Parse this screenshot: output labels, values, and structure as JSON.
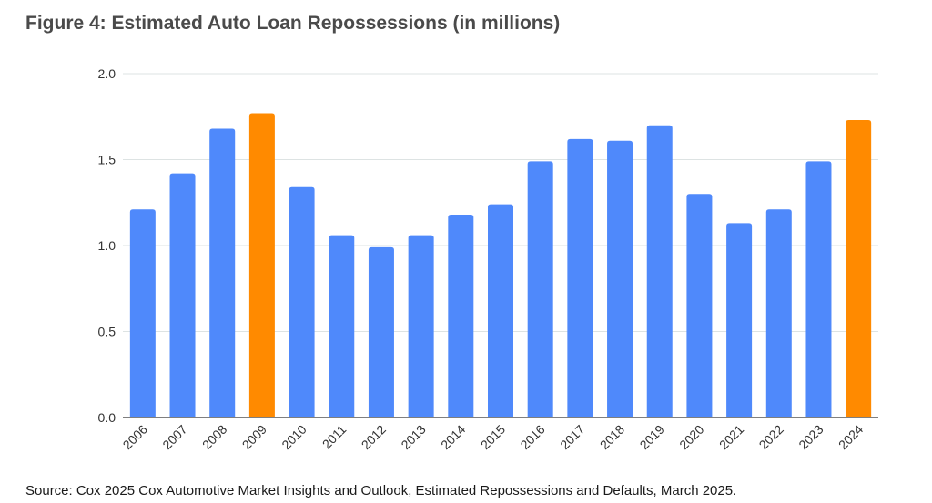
{
  "chart_data": {
    "type": "bar",
    "title": "Figure 4: Estimated Auto Loan Repossessions (in millions)",
    "xlabel": "",
    "ylabel": "",
    "ylim": [
      0,
      2.0
    ],
    "yticks": [
      "0.0",
      "0.5",
      "1.0",
      "1.5",
      "2.0"
    ],
    "ytick_values": [
      0,
      0.5,
      1.0,
      1.5,
      2.0
    ],
    "grid": true,
    "categories": [
      "2006",
      "2007",
      "2008",
      "2009",
      "2010",
      "2011",
      "2012",
      "2013",
      "2014",
      "2015",
      "2016",
      "2017",
      "2018",
      "2019",
      "2020",
      "2021",
      "2022",
      "2023",
      "2024"
    ],
    "values": [
      1.21,
      1.42,
      1.68,
      1.77,
      1.34,
      1.06,
      0.99,
      1.06,
      1.18,
      1.24,
      1.49,
      1.62,
      1.61,
      1.7,
      1.3,
      1.13,
      1.21,
      1.49,
      1.73
    ],
    "highlighted": [
      "2009",
      "2024"
    ],
    "colors": {
      "default": "#4f89fb",
      "highlight": "#ff8a00",
      "grid": "#dde3e3"
    },
    "source": "Source: Cox 2025 Cox Automotive Market Insights and Outlook, Estimated Repossessions and Defaults, March 2025."
  }
}
